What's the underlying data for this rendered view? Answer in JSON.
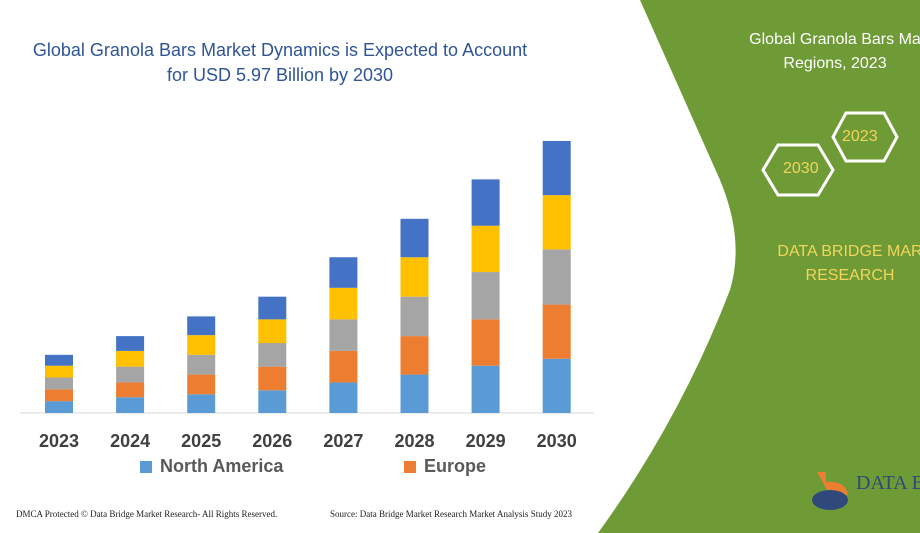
{
  "title": "Global Granola Bars Market Dynamics is Expected to Account for USD 5.97 Billion by 2030",
  "right_panel": {
    "title_line1": "Global Granola Bars Ma",
    "title_line2": "Regions, 2023",
    "hex_2023": "2023",
    "hex_2030": "2030",
    "brand_line1": "DATA BRIDGE MAR",
    "brand_line2": "RESEARCH",
    "logo_text": "DATA BR",
    "panel_color": "#6f9b36"
  },
  "footer": {
    "left": "DMCA Protected © Data Bridge Market Research-  All Rights Reserved.",
    "right": "Source: Data Bridge Market Research  Market Analysis Study 2023"
  },
  "chart_data": {
    "type": "bar",
    "stacked": true,
    "title": "Global Granola Bars Market Dynamics is Expected to Account for USD 5.97 Billion by 2030",
    "categories": [
      "2023",
      "2024",
      "2025",
      "2026",
      "2027",
      "2028",
      "2029",
      "2030"
    ],
    "ylim": [
      0,
      280
    ],
    "grid": false,
    "legend_position": "bottom",
    "series": [
      {
        "name": "North America",
        "color": "#5b9bd5",
        "values": [
          12,
          16,
          19,
          23,
          31,
          39,
          48,
          55
        ]
      },
      {
        "name": "Europe",
        "color": "#ed7d31",
        "values": [
          12,
          15,
          20,
          24,
          32,
          39,
          47,
          55
        ]
      },
      {
        "name": "",
        "color": "#a5a5a5",
        "values": [
          12,
          16,
          20,
          24,
          32,
          40,
          48,
          56
        ]
      },
      {
        "name": "",
        "color": "#ffc000",
        "values": [
          12,
          16,
          20,
          24,
          32,
          40,
          47,
          55
        ]
      },
      {
        "name": "",
        "color": "#4472c4",
        "values": [
          11,
          15,
          19,
          23,
          31,
          39,
          47,
          55
        ]
      }
    ]
  }
}
